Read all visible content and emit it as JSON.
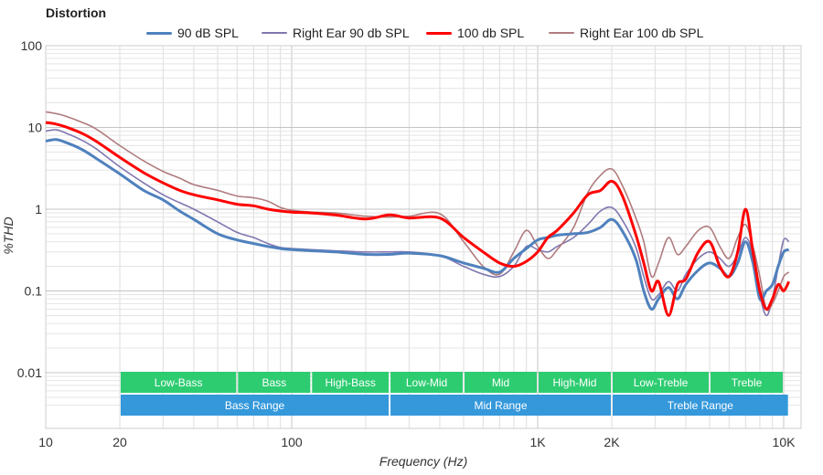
{
  "title": "Distortion",
  "chart_data": {
    "type": "line",
    "title": "Distortion",
    "xlabel": "Frequency (Hz)",
    "ylabel": "%THD",
    "xscale": "log",
    "yscale": "log",
    "xlim": [
      10,
      10500
    ],
    "ylim": [
      0.003,
      100
    ],
    "x_ticks": [
      {
        "value": 10,
        "label": "10"
      },
      {
        "value": 20,
        "label": "20"
      },
      {
        "value": 100,
        "label": "100"
      },
      {
        "value": 1000,
        "label": "1K"
      },
      {
        "value": 2000,
        "label": "2K"
      },
      {
        "value": 10000,
        "label": "10K"
      }
    ],
    "y_ticks": [
      {
        "value": 100,
        "label": "100"
      },
      {
        "value": 10,
        "label": "10"
      },
      {
        "value": 1,
        "label": "1"
      },
      {
        "value": 0.1,
        "label": "0.1"
      },
      {
        "value": 0.01,
        "label": "0.01"
      }
    ],
    "legend_position": "top-center",
    "series": [
      {
        "name": "90 dB SPL",
        "color": "#4f81bd",
        "width": 3,
        "points": [
          [
            10,
            6.8
          ],
          [
            11,
            7.1
          ],
          [
            12,
            6.6
          ],
          [
            14,
            5.4
          ],
          [
            16,
            4.2
          ],
          [
            20,
            2.7
          ],
          [
            25,
            1.7
          ],
          [
            30,
            1.3
          ],
          [
            35,
            0.95
          ],
          [
            40,
            0.75
          ],
          [
            50,
            0.5
          ],
          [
            60,
            0.42
          ],
          [
            70,
            0.38
          ],
          [
            80,
            0.35
          ],
          [
            90,
            0.33
          ],
          [
            100,
            0.32
          ],
          [
            120,
            0.31
          ],
          [
            150,
            0.3
          ],
          [
            200,
            0.28
          ],
          [
            250,
            0.28
          ],
          [
            300,
            0.29
          ],
          [
            400,
            0.27
          ],
          [
            500,
            0.22
          ],
          [
            600,
            0.19
          ],
          [
            700,
            0.17
          ],
          [
            800,
            0.25
          ],
          [
            900,
            0.33
          ],
          [
            1000,
            0.42
          ],
          [
            1100,
            0.45
          ],
          [
            1200,
            0.48
          ],
          [
            1400,
            0.5
          ],
          [
            1600,
            0.52
          ],
          [
            1800,
            0.6
          ],
          [
            2000,
            0.75
          ],
          [
            2200,
            0.55
          ],
          [
            2500,
            0.25
          ],
          [
            2700,
            0.1
          ],
          [
            2900,
            0.06
          ],
          [
            3100,
            0.08
          ],
          [
            3400,
            0.11
          ],
          [
            3700,
            0.08
          ],
          [
            4000,
            0.12
          ],
          [
            4500,
            0.18
          ],
          [
            5000,
            0.22
          ],
          [
            5500,
            0.19
          ],
          [
            6000,
            0.15
          ],
          [
            6500,
            0.22
          ],
          [
            7000,
            0.4
          ],
          [
            7500,
            0.22
          ],
          [
            8000,
            0.08
          ],
          [
            8500,
            0.1
          ],
          [
            9000,
            0.12
          ],
          [
            9500,
            0.2
          ],
          [
            10000,
            0.3
          ],
          [
            10500,
            0.32
          ]
        ]
      },
      {
        "name": "Right Ear 90 db SPL",
        "color": "#8077b0",
        "width": 1.6,
        "points": [
          [
            10,
            9.0
          ],
          [
            11,
            9.4
          ],
          [
            12,
            8.6
          ],
          [
            14,
            7.0
          ],
          [
            16,
            5.5
          ],
          [
            20,
            3.3
          ],
          [
            25,
            2.1
          ],
          [
            30,
            1.5
          ],
          [
            35,
            1.2
          ],
          [
            40,
            1.0
          ],
          [
            50,
            0.7
          ],
          [
            60,
            0.52
          ],
          [
            70,
            0.45
          ],
          [
            80,
            0.38
          ],
          [
            90,
            0.34
          ],
          [
            100,
            0.33
          ],
          [
            120,
            0.32
          ],
          [
            150,
            0.31
          ],
          [
            200,
            0.3
          ],
          [
            250,
            0.3
          ],
          [
            300,
            0.3
          ],
          [
            400,
            0.27
          ],
          [
            500,
            0.2
          ],
          [
            600,
            0.16
          ],
          [
            700,
            0.15
          ],
          [
            800,
            0.2
          ],
          [
            900,
            0.35
          ],
          [
            1000,
            0.32
          ],
          [
            1100,
            0.3
          ],
          [
            1200,
            0.35
          ],
          [
            1400,
            0.45
          ],
          [
            1600,
            0.65
          ],
          [
            1800,
            0.95
          ],
          [
            2000,
            1.05
          ],
          [
            2200,
            0.75
          ],
          [
            2500,
            0.35
          ],
          [
            2700,
            0.15
          ],
          [
            2900,
            0.08
          ],
          [
            3100,
            0.09
          ],
          [
            3400,
            0.13
          ],
          [
            3700,
            0.1
          ],
          [
            4000,
            0.16
          ],
          [
            4500,
            0.25
          ],
          [
            5000,
            0.3
          ],
          [
            5500,
            0.25
          ],
          [
            6000,
            0.2
          ],
          [
            6500,
            0.28
          ],
          [
            7000,
            0.45
          ],
          [
            7500,
            0.28
          ],
          [
            8000,
            0.09
          ],
          [
            8500,
            0.05
          ],
          [
            9000,
            0.08
          ],
          [
            9500,
            0.2
          ],
          [
            10000,
            0.42
          ],
          [
            10500,
            0.4
          ]
        ]
      },
      {
        "name": "100 db SPL",
        "color": "#ff0000",
        "width": 3,
        "points": [
          [
            10,
            11.5
          ],
          [
            11,
            11.0
          ],
          [
            12,
            10.2
          ],
          [
            14,
            8.5
          ],
          [
            16,
            6.8
          ],
          [
            20,
            4.3
          ],
          [
            25,
            2.8
          ],
          [
            30,
            2.1
          ],
          [
            35,
            1.7
          ],
          [
            40,
            1.5
          ],
          [
            50,
            1.3
          ],
          [
            60,
            1.15
          ],
          [
            70,
            1.1
          ],
          [
            80,
            1.0
          ],
          [
            90,
            0.95
          ],
          [
            100,
            0.92
          ],
          [
            120,
            0.9
          ],
          [
            150,
            0.85
          ],
          [
            200,
            0.76
          ],
          [
            250,
            0.85
          ],
          [
            300,
            0.78
          ],
          [
            400,
            0.78
          ],
          [
            500,
            0.45
          ],
          [
            600,
            0.3
          ],
          [
            700,
            0.22
          ],
          [
            800,
            0.2
          ],
          [
            900,
            0.23
          ],
          [
            1000,
            0.3
          ],
          [
            1100,
            0.45
          ],
          [
            1200,
            0.55
          ],
          [
            1400,
            0.9
          ],
          [
            1600,
            1.5
          ],
          [
            1800,
            1.7
          ],
          [
            2000,
            2.2
          ],
          [
            2200,
            1.5
          ],
          [
            2500,
            0.5
          ],
          [
            2700,
            0.22
          ],
          [
            2900,
            0.1
          ],
          [
            3100,
            0.13
          ],
          [
            3400,
            0.05
          ],
          [
            3700,
            0.12
          ],
          [
            4000,
            0.14
          ],
          [
            4500,
            0.3
          ],
          [
            5000,
            0.4
          ],
          [
            5500,
            0.2
          ],
          [
            6000,
            0.15
          ],
          [
            6500,
            0.3
          ],
          [
            7000,
            1.0
          ],
          [
            7500,
            0.3
          ],
          [
            8000,
            0.1
          ],
          [
            8500,
            0.06
          ],
          [
            9000,
            0.08
          ],
          [
            9500,
            0.12
          ],
          [
            10000,
            0.1
          ],
          [
            10500,
            0.13
          ]
        ]
      },
      {
        "name": "Right Ear 100 db SPL",
        "color": "#b07c7f",
        "width": 1.6,
        "points": [
          [
            10,
            15.5
          ],
          [
            11,
            14.8
          ],
          [
            12,
            13.8
          ],
          [
            14,
            11.6
          ],
          [
            16,
            9.6
          ],
          [
            20,
            6.0
          ],
          [
            25,
            3.9
          ],
          [
            30,
            2.9
          ],
          [
            35,
            2.4
          ],
          [
            40,
            2.0
          ],
          [
            50,
            1.7
          ],
          [
            60,
            1.45
          ],
          [
            70,
            1.38
          ],
          [
            80,
            1.25
          ],
          [
            90,
            1.05
          ],
          [
            100,
            0.97
          ],
          [
            120,
            0.92
          ],
          [
            150,
            0.9
          ],
          [
            200,
            0.82
          ],
          [
            250,
            0.8
          ],
          [
            300,
            0.82
          ],
          [
            400,
            0.88
          ],
          [
            500,
            0.4
          ],
          [
            600,
            0.2
          ],
          [
            700,
            0.16
          ],
          [
            800,
            0.3
          ],
          [
            900,
            0.55
          ],
          [
            1000,
            0.35
          ],
          [
            1100,
            0.25
          ],
          [
            1200,
            0.32
          ],
          [
            1400,
            0.6
          ],
          [
            1600,
            1.6
          ],
          [
            1800,
            2.6
          ],
          [
            2000,
            3.1
          ],
          [
            2200,
            2.0
          ],
          [
            2500,
            0.8
          ],
          [
            2700,
            0.4
          ],
          [
            2900,
            0.15
          ],
          [
            3100,
            0.22
          ],
          [
            3400,
            0.45
          ],
          [
            3700,
            0.28
          ],
          [
            4000,
            0.35
          ],
          [
            4500,
            0.55
          ],
          [
            5000,
            0.6
          ],
          [
            5500,
            0.35
          ],
          [
            6000,
            0.25
          ],
          [
            6500,
            0.45
          ],
          [
            7000,
            0.65
          ],
          [
            7500,
            0.35
          ],
          [
            8000,
            0.15
          ],
          [
            8500,
            0.06
          ],
          [
            9000,
            0.07
          ],
          [
            9500,
            0.1
          ],
          [
            10000,
            0.15
          ],
          [
            10500,
            0.17
          ]
        ]
      }
    ],
    "band_rows": [
      {
        "color": "#2ecc71",
        "bands": [
          {
            "label": "Low-Bass",
            "start": 20,
            "end": 60
          },
          {
            "label": "Bass",
            "start": 60,
            "end": 120
          },
          {
            "label": "High-Bass",
            "start": 120,
            "end": 250
          },
          {
            "label": "Low-Mid",
            "start": 250,
            "end": 500
          },
          {
            "label": "Mid",
            "start": 500,
            "end": 1000
          },
          {
            "label": "High-Mid",
            "start": 1000,
            "end": 2000
          },
          {
            "label": "Low-Treble",
            "start": 2000,
            "end": 5000
          },
          {
            "label": "Treble",
            "start": 5000,
            "end": 10000
          }
        ]
      },
      {
        "color": "#3498db",
        "bands": [
          {
            "label": "Bass Range",
            "start": 20,
            "end": 250
          },
          {
            "label": "Mid Range",
            "start": 250,
            "end": 2000
          },
          {
            "label": "Treble Range",
            "start": 2000,
            "end": 10500
          }
        ]
      }
    ]
  }
}
